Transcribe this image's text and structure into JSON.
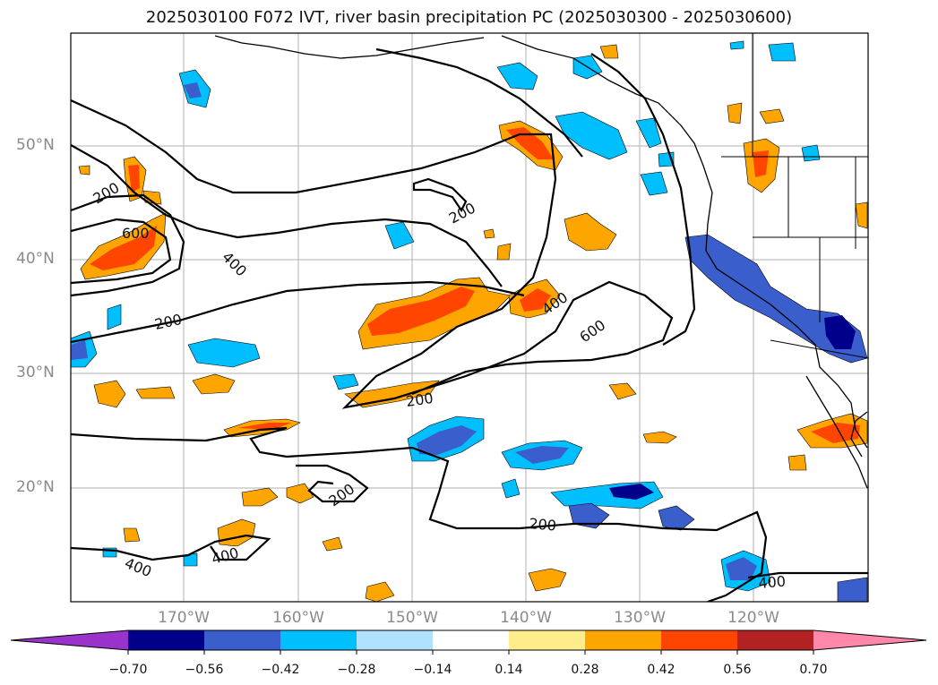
{
  "title": "2025030100 F072 IVT, river basin precipitation PC (2025030300 - 2025030600)",
  "lat_labels": [
    "50°N",
    "40°N",
    "30°N",
    "20°N"
  ],
  "lon_labels": [
    "170°W",
    "160°W",
    "150°W",
    "140°W",
    "130°W",
    "120°W"
  ],
  "contour_labels": [
    "200",
    "600",
    "400",
    "200",
    "200",
    "400",
    "600",
    "200",
    "200",
    "200",
    "400",
    "400",
    "400"
  ],
  "colorbar": {
    "ticks": [
      "−0.70",
      "−0.56",
      "−0.42",
      "−0.28",
      "−0.14",
      "0.14",
      "0.28",
      "0.42",
      "0.56",
      "0.70"
    ],
    "colors": [
      "#9933cc",
      "#00008b",
      "#3a5fcd",
      "#00bfff",
      "#b0e2ff",
      "#ffffff",
      "#ffec8b",
      "#ffa500",
      "#ff4500",
      "#b22222",
      "#ff88aa"
    ]
  }
}
